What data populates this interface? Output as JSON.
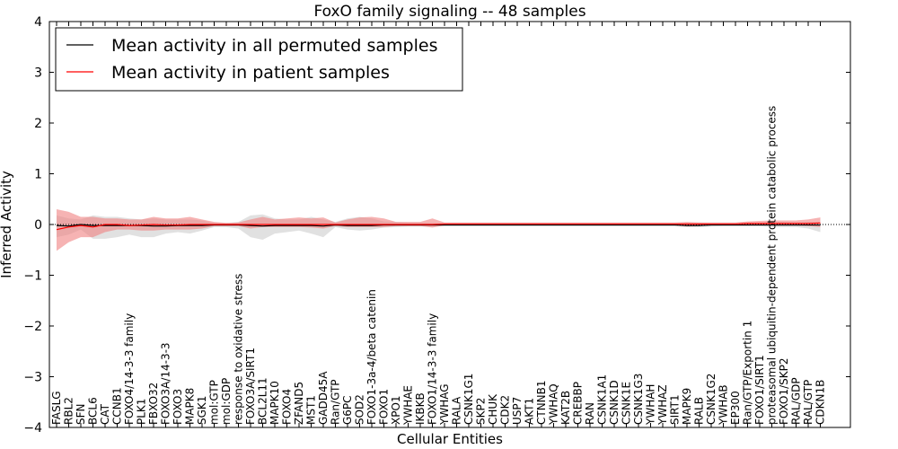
{
  "chart_data": {
    "type": "line",
    "title": "FoxO family signaling -- 48 samples",
    "xlabel": "Cellular Entities",
    "ylabel": "Inferred Activity",
    "ylim": [
      -4,
      4
    ],
    "yticks": [
      -4,
      -3,
      -2,
      -1,
      0,
      1,
      2,
      3,
      4
    ],
    "ytick_labels": [
      "−4",
      "−3",
      "−2",
      "−1",
      "0",
      "1",
      "2",
      "3",
      "4"
    ],
    "legend_position": "top-left",
    "categories": [
      "FASLG",
      "RBL2",
      "SFN",
      "BCL6",
      "CAT",
      "CCNB1",
      "FOXO4/14-3-3 family",
      "PLK1",
      "FBXO32",
      "FOXO3A/14-3-3",
      "FOXO3",
      "MAPK8",
      "SGK1",
      "mol:GTP",
      "mol:GDP",
      "response to oxidative stress",
      "FOXO3A/SIRT1",
      "BCL2L11",
      "MAPK10",
      "FOXO4",
      "ZFAND5",
      "MST1",
      "GADD45A",
      "Ran/GTP",
      "G6PC",
      "SOD2",
      "FOXO1-3a-4/beta catenin",
      "FOXO1",
      "XPO1",
      "YWHAE",
      "IKBKB",
      "FOXO1/14-3-3 family",
      "YWHAG",
      "RALA",
      "CSNK1G1",
      "SKP2",
      "CHUK",
      "CDK2",
      "USP7",
      "AKT1",
      "CTNNB1",
      "YWHAQ",
      "KAT2B",
      "CREBBP",
      "RAN",
      "CSNK1A1",
      "CSNK1D",
      "CSNK1E",
      "CSNK1G3",
      "YWHAH",
      "YWHAZ",
      "SIRT1",
      "MAPK9",
      "RALB",
      "CSNK1G2",
      "YWHAB",
      "EP300",
      "Ran/GTP/Exportin 1",
      "FOXO1/SIRT1",
      "proteasomal ubiquitin-dependent protein catabolic process",
      "FOXO1/SKP2",
      "RAL/GDP",
      "RAL/GTP",
      "CDKN1B"
    ],
    "series": [
      {
        "name": "Mean activity in all permuted samples",
        "color": "#000000",
        "band_color": "#c8c8c8",
        "values": [
          -0.02,
          -0.03,
          0.0,
          -0.02,
          -0.02,
          -0.02,
          -0.02,
          -0.02,
          -0.03,
          -0.03,
          -0.02,
          -0.02,
          -0.02,
          -0.01,
          -0.01,
          -0.01,
          -0.02,
          -0.03,
          -0.02,
          -0.02,
          -0.02,
          -0.02,
          -0.03,
          -0.01,
          -0.02,
          -0.02,
          -0.02,
          -0.01,
          -0.01,
          -0.01,
          -0.01,
          -0.01,
          -0.01,
          -0.01,
          -0.01,
          -0.01,
          -0.01,
          -0.01,
          -0.01,
          -0.01,
          -0.01,
          -0.01,
          -0.01,
          -0.01,
          -0.01,
          -0.01,
          -0.01,
          -0.01,
          -0.01,
          -0.01,
          -0.01,
          -0.01,
          -0.02,
          -0.02,
          -0.01,
          -0.01,
          -0.01,
          -0.01,
          -0.01,
          -0.01,
          -0.01,
          -0.01,
          -0.01,
          -0.01
        ],
        "band_upper": [
          0.18,
          0.12,
          0.1,
          0.18,
          0.15,
          0.15,
          0.12,
          0.1,
          0.12,
          0.1,
          0.1,
          0.1,
          0.08,
          0.03,
          0.03,
          0.05,
          0.18,
          0.2,
          0.12,
          0.1,
          0.1,
          0.15,
          0.1,
          0.05,
          0.12,
          0.15,
          0.12,
          0.06,
          0.05,
          0.04,
          0.04,
          0.03,
          0.03,
          0.03,
          0.03,
          0.03,
          0.03,
          0.03,
          0.03,
          0.03,
          0.03,
          0.03,
          0.03,
          0.03,
          0.03,
          0.03,
          0.03,
          0.03,
          0.03,
          0.03,
          0.03,
          0.03,
          0.03,
          0.04,
          0.03,
          0.03,
          0.03,
          0.03,
          0.03,
          0.05,
          0.05,
          0.04,
          0.05,
          0.05
        ],
        "band_lower": [
          -0.25,
          -0.2,
          -0.1,
          -0.28,
          -0.28,
          -0.25,
          -0.2,
          -0.25,
          -0.25,
          -0.18,
          -0.15,
          -0.18,
          -0.12,
          -0.05,
          -0.05,
          -0.08,
          -0.25,
          -0.3,
          -0.18,
          -0.15,
          -0.12,
          -0.18,
          -0.25,
          -0.05,
          -0.1,
          -0.12,
          -0.1,
          -0.06,
          -0.05,
          -0.04,
          -0.04,
          -0.04,
          -0.03,
          -0.03,
          -0.03,
          -0.03,
          -0.03,
          -0.03,
          -0.03,
          -0.03,
          -0.03,
          -0.03,
          -0.03,
          -0.03,
          -0.03,
          -0.03,
          -0.03,
          -0.03,
          -0.03,
          -0.03,
          -0.03,
          -0.03,
          -0.05,
          -0.05,
          -0.04,
          -0.03,
          -0.03,
          -0.03,
          -0.03,
          -0.05,
          -0.05,
          -0.05,
          -0.08,
          -0.15
        ]
      },
      {
        "name": "Mean activity in patient samples",
        "color": "#ff0000",
        "band_color": "#f08080",
        "values": [
          -0.1,
          -0.05,
          -0.02,
          -0.05,
          0.0,
          0.0,
          -0.02,
          -0.01,
          0.0,
          -0.01,
          -0.01,
          0.0,
          0.0,
          0.0,
          0.0,
          0.0,
          0.0,
          0.0,
          0.0,
          0.0,
          0.0,
          0.0,
          0.0,
          0.0,
          0.0,
          0.0,
          0.0,
          0.0,
          0.0,
          0.0,
          0.0,
          0.0,
          0.01,
          0.01,
          0.01,
          0.01,
          0.01,
          0.01,
          0.01,
          0.01,
          0.01,
          0.01,
          0.01,
          0.01,
          0.01,
          0.01,
          0.01,
          0.01,
          0.01,
          0.01,
          0.01,
          0.01,
          0.01,
          0.01,
          0.01,
          0.01,
          0.01,
          0.02,
          0.02,
          0.02,
          0.02,
          0.02,
          0.02,
          0.03
        ],
        "band_upper": [
          0.3,
          0.25,
          0.15,
          0.15,
          0.12,
          0.12,
          0.1,
          0.1,
          0.15,
          0.12,
          0.12,
          0.15,
          0.1,
          0.05,
          0.03,
          0.04,
          0.1,
          0.15,
          0.1,
          0.12,
          0.14,
          0.12,
          0.14,
          0.04,
          0.1,
          0.14,
          0.15,
          0.12,
          0.05,
          0.05,
          0.05,
          0.12,
          0.04,
          0.04,
          0.04,
          0.04,
          0.04,
          0.04,
          0.04,
          0.04,
          0.04,
          0.04,
          0.04,
          0.04,
          0.04,
          0.04,
          0.04,
          0.04,
          0.04,
          0.04,
          0.04,
          0.04,
          0.05,
          0.04,
          0.04,
          0.04,
          0.04,
          0.06,
          0.07,
          0.08,
          0.08,
          0.08,
          0.1,
          0.14
        ],
        "band_lower": [
          -0.52,
          -0.35,
          -0.25,
          -0.25,
          -0.15,
          -0.1,
          -0.1,
          -0.12,
          -0.12,
          -0.1,
          -0.1,
          -0.1,
          -0.08,
          -0.03,
          -0.03,
          -0.03,
          -0.08,
          -0.05,
          -0.05,
          -0.05,
          -0.05,
          -0.06,
          -0.08,
          -0.03,
          -0.05,
          -0.05,
          -0.05,
          -0.05,
          -0.03,
          -0.03,
          -0.03,
          -0.06,
          -0.02,
          -0.02,
          -0.02,
          -0.02,
          -0.02,
          -0.02,
          -0.02,
          -0.02,
          -0.02,
          -0.02,
          -0.02,
          -0.02,
          -0.02,
          -0.02,
          -0.02,
          -0.02,
          -0.02,
          -0.02,
          -0.02,
          -0.02,
          -0.04,
          -0.03,
          -0.02,
          -0.02,
          -0.02,
          -0.02,
          -0.02,
          -0.02,
          -0.02,
          -0.02,
          -0.03,
          -0.05
        ]
      }
    ]
  }
}
